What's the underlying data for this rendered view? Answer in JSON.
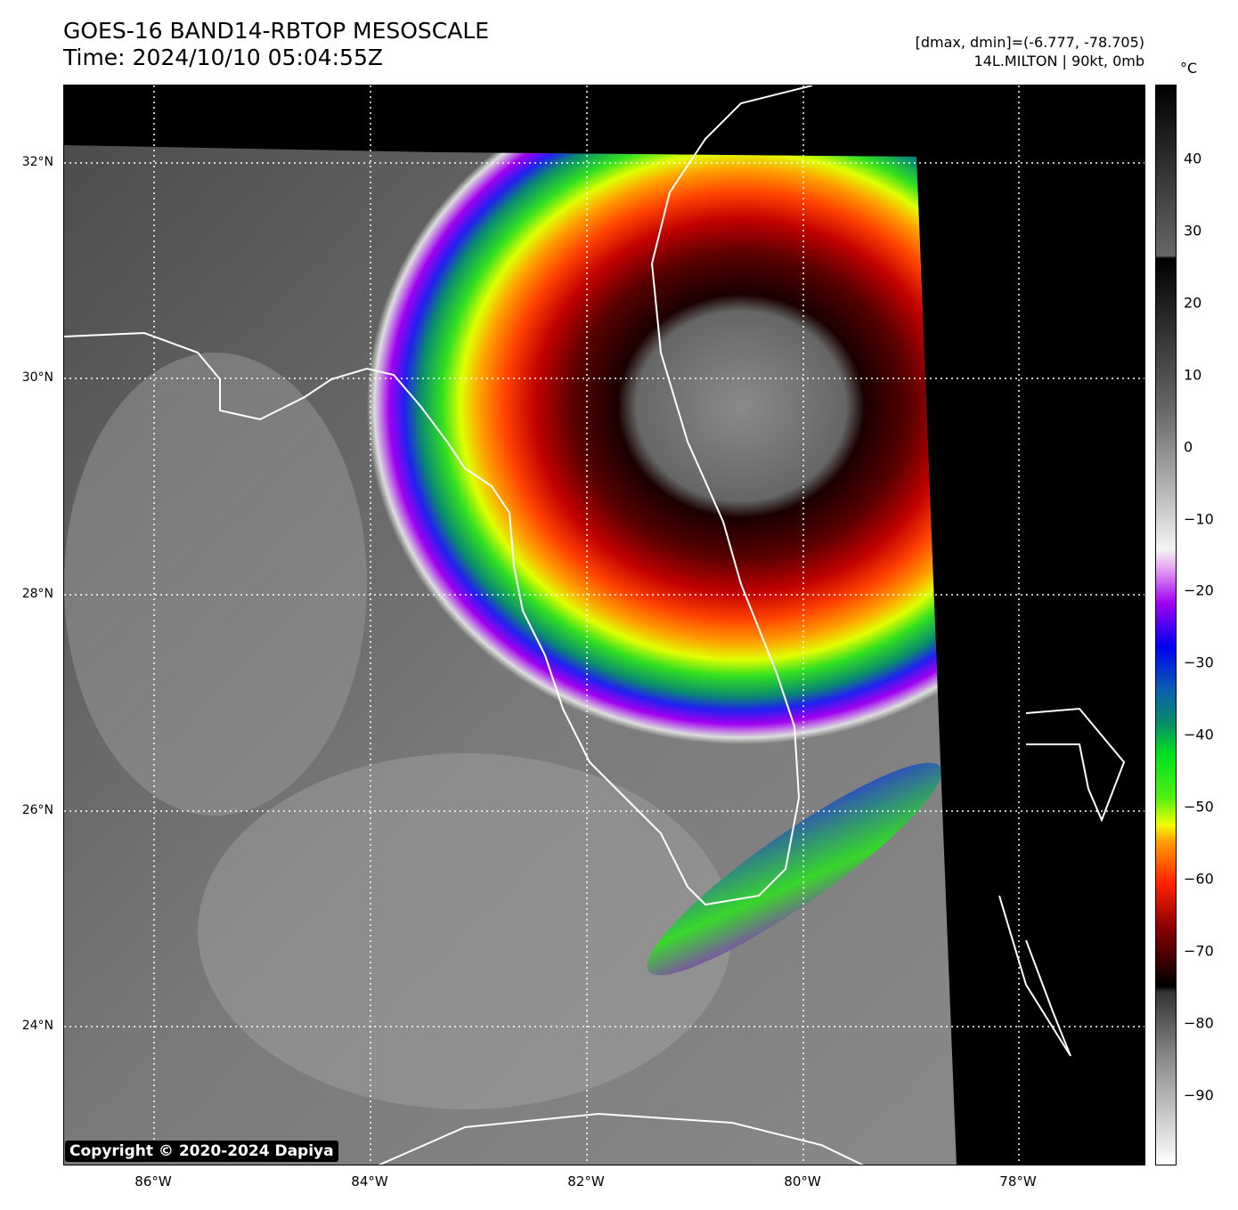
{
  "header": {
    "title": "GOES-16 BAND14-RBTOP MESOSCALE",
    "time": "Time: 2024/10/10 05:04:55Z",
    "range": "[dmax, dmin]=(-6.777, -78.705)",
    "storm": "14L.MILTON | 90kt, 0mb"
  },
  "axes": {
    "lat": [
      "32°N",
      "30°N",
      "28°N",
      "26°N",
      "24°N"
    ],
    "lon": [
      "86°W",
      "84°W",
      "82°W",
      "80°W",
      "78°W"
    ]
  },
  "colorbar": {
    "unit": "°C",
    "ticks": [
      "40",
      "30",
      "20",
      "10",
      "0",
      "−10",
      "−20",
      "−30",
      "−40",
      "−50",
      "−60",
      "−70",
      "−80",
      "−90"
    ]
  },
  "copyright": "Copyright © 2020-2024 Dapiya"
}
